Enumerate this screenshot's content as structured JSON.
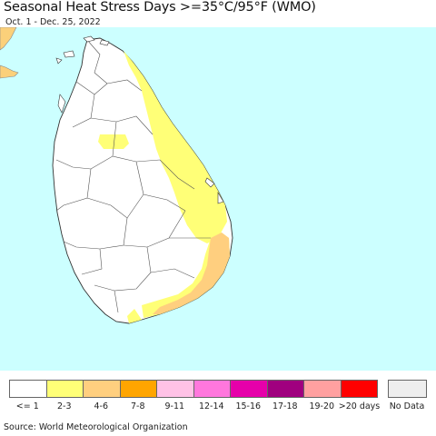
{
  "header": {
    "title": "Seasonal Heat Stress Days >=35°C/95°F (WMO)",
    "date_range": "Oct. 1 - Dec. 25, 2022"
  },
  "map": {
    "ocean_color": "#ccffff",
    "land_color": "#ffffff",
    "neighbor_land_color": "#fbd07a",
    "border_color": "#555555",
    "region": "Sri Lanka"
  },
  "legend": {
    "items": [
      {
        "label": "<= 1",
        "color": "#ffffff"
      },
      {
        "label": "2-3",
        "color": "#ffff77"
      },
      {
        "label": "4-6",
        "color": "#ffcf7f"
      },
      {
        "label": "7-8",
        "color": "#ffa500"
      },
      {
        "label": "9-11",
        "color": "#ffc2e6"
      },
      {
        "label": "12-14",
        "color": "#ff77dd"
      },
      {
        "label": "15-16",
        "color": "#e600aa"
      },
      {
        "label": "17-18",
        "color": "#a0007f"
      },
      {
        "label": "19-20",
        "color": "#ffa0a0"
      },
      {
        "label": ">20 days",
        "color": "#ff0000"
      }
    ],
    "no_data": {
      "label": "No Data",
      "color": "#eeeeee"
    }
  },
  "footer": {
    "source": "Source: World Meteorological Organization"
  }
}
